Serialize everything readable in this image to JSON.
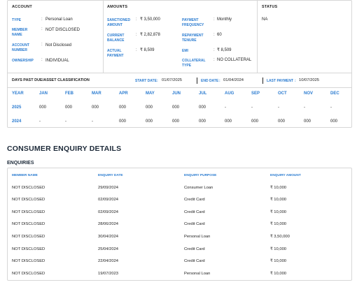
{
  "account": {
    "header": "ACCOUNT",
    "fields": [
      {
        "label": "TYPE",
        "value": "Personal Loan"
      },
      {
        "label": "MEMBER NAME",
        "value": "NOT DISCLOSED"
      },
      {
        "label": "ACCOUNT NUMBER",
        "value": "Not Disclosed"
      },
      {
        "label": "OWNERSHIP",
        "value": "INDIVIDUAL"
      }
    ]
  },
  "amounts": {
    "header": "AMOUNTS",
    "left": [
      {
        "label": "SANCTIONED AMOUNT",
        "value": "₹ 3,50,000"
      },
      {
        "label": "CURRENT BALANCE",
        "value": "₹ 2,82,878"
      },
      {
        "label": "ACTUAL PAYMENT",
        "value": "₹ 8,509"
      }
    ],
    "right": [
      {
        "label": "PAYMENT FREQUENCY",
        "value": "Monthly"
      },
      {
        "label": "REPAYMENT TENURE",
        "value": "60"
      },
      {
        "label": "EMI",
        "value": "₹ 8,509"
      },
      {
        "label": "COLLATERAL TYPE",
        "value": "NO COLLATERAL"
      }
    ]
  },
  "status": {
    "header": "STATUS",
    "value": "NA"
  },
  "dpd": {
    "title": "DAYS PAST DUE/ASSET CLASSIFICATION",
    "start_label": "START DATE",
    "start_value": "01/07/2025",
    "end_label": "END DATE",
    "end_value": "01/04/2024",
    "last_label": "LAST PAYMENT",
    "last_value": "10/07/2025",
    "columns": [
      "YEAR",
      "JAN",
      "FEB",
      "MAR",
      "APR",
      "MAY",
      "JUN",
      "JUL",
      "AUG",
      "SEP",
      "OCT",
      "NOV",
      "DEC"
    ],
    "rows": [
      [
        "2025",
        "000",
        "000",
        "000",
        "000",
        "000",
        "000",
        "000",
        "-",
        "-",
        "-",
        "-",
        "-"
      ],
      [
        "2024",
        "-",
        "-",
        "-",
        "000",
        "000",
        "000",
        "000",
        "000",
        "000",
        "000",
        "000",
        "000"
      ]
    ]
  },
  "enquiry": {
    "section_title": "CONSUMER ENQUIRY DETAILS",
    "sub_title": "ENQUIRIES",
    "columns": [
      "MEMBER NAME",
      "ENQUIRY DATE",
      "ENQUIRY PURPOSE",
      "ENQUIRY AMOUNT"
    ],
    "rows": [
      [
        "NOT DISCLOSED",
        "29/09/2024",
        "Consumer Loan",
        "₹ 10,000"
      ],
      [
        "NOT DISCLOSED",
        "02/09/2024",
        "Credit Card",
        "₹ 10,000"
      ],
      [
        "NOT DISCLOSED",
        "02/09/2024",
        "Credit Card",
        "₹ 10,000"
      ],
      [
        "NOT DISCLOSED",
        "28/06/2024",
        "Credit Card",
        "₹ 10,000"
      ],
      [
        "NOT DISCLOSED",
        "30/04/2024",
        "Personal Loan",
        "₹ 3,50,000"
      ],
      [
        "NOT DISCLOSED",
        "25/04/2024",
        "Credit Card",
        "₹ 10,000"
      ],
      [
        "NOT DISCLOSED",
        "22/04/2024",
        "Credit Card",
        "₹ 10,000"
      ],
      [
        "NOT DISCLOSED",
        "19/07/2023",
        "Personal Loan",
        "₹ 10,000"
      ]
    ]
  }
}
